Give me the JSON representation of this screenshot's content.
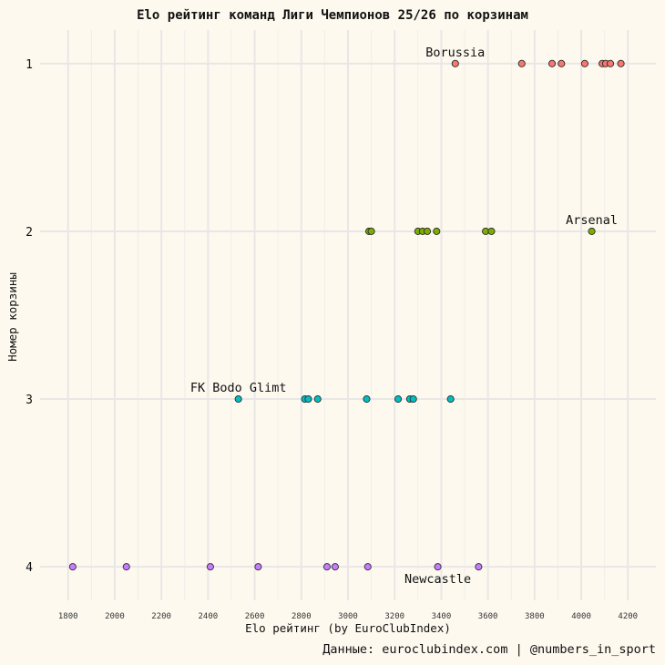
{
  "chart_data": {
    "type": "scatter",
    "title": "Elo рейтинг команд Лиги Чемпионов 25/26 по корзинам",
    "xlabel": "Elo рейтинг (by EuroClubIndex)",
    "ylabel": "Номер корзины",
    "caption": "Данные: euroclubindex.com | @numbers_in_sport",
    "xlim": [
      1680,
      4320
    ],
    "xticks": [
      1800,
      2000,
      2200,
      2400,
      2600,
      2800,
      3000,
      3200,
      3400,
      3600,
      3800,
      4000,
      4200
    ],
    "ylim": [
      0.8,
      4.2
    ],
    "yticks": [
      1,
      2,
      3,
      4
    ],
    "y_reversed": true,
    "grid": true,
    "series": [
      {
        "pot": 1,
        "color": "#f8766d",
        "values": [
          3460,
          3745,
          3875,
          3915,
          4015,
          4090,
          4105,
          4125,
          4170
        ]
      },
      {
        "pot": 2,
        "color": "#7cae00",
        "values": [
          3090,
          3100,
          3300,
          3320,
          3340,
          3380,
          3590,
          3615,
          4045
        ]
      },
      {
        "pot": 3,
        "color": "#00bfc4",
        "values": [
          2530,
          2815,
          2830,
          2870,
          3080,
          3215,
          3265,
          3280,
          3440
        ]
      },
      {
        "pot": 4,
        "color": "#c77cff",
        "values": [
          1820,
          2050,
          2410,
          2615,
          2910,
          2945,
          3085,
          3385,
          3560
        ]
      }
    ],
    "annotations": [
      {
        "label": "Borussia",
        "x": 3460,
        "y": 1,
        "position": "above"
      },
      {
        "label": "Arsenal",
        "x": 4045,
        "y": 2,
        "position": "above"
      },
      {
        "label": "FK Bodo Glimt",
        "x": 2530,
        "y": 3,
        "position": "above"
      },
      {
        "label": "Newcastle",
        "x": 3385,
        "y": 4,
        "position": "below"
      }
    ]
  }
}
